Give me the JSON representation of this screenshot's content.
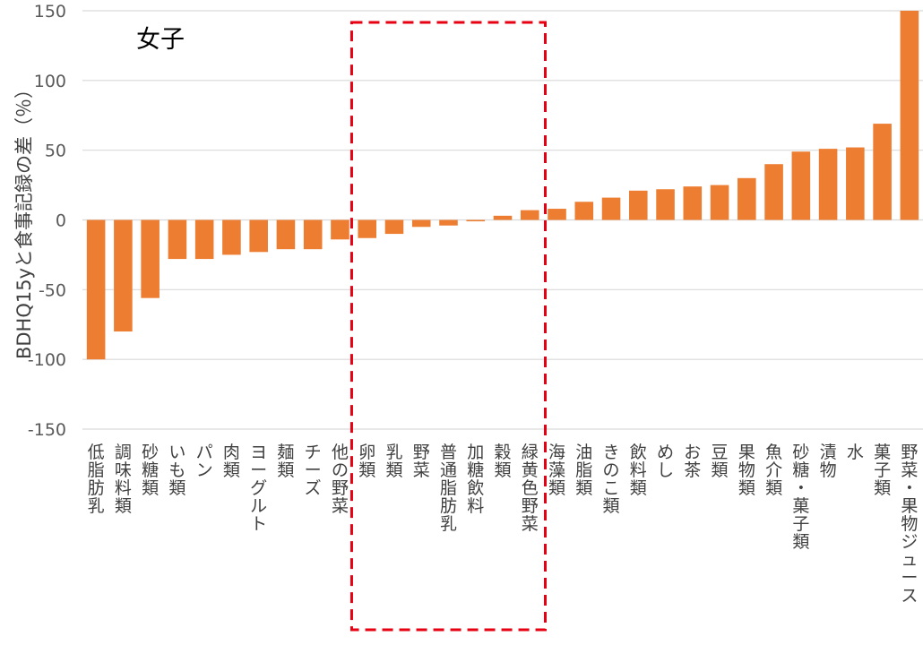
{
  "chart_data": {
    "type": "bar",
    "title": "女子",
    "xlabel": "",
    "ylabel": "BDHQ15yと食事記録の差（％）",
    "ylim": [
      -150,
      150
    ],
    "yticks": [
      150,
      100,
      50,
      0,
      -50,
      -100,
      -150
    ],
    "grid": true,
    "legend": "none",
    "categories": [
      "低脂肪乳",
      "調味料類",
      "砂糖類",
      "いも類",
      "パン",
      "肉類",
      "ヨーグルト",
      "麺類",
      "チーズ",
      "他の野菜",
      "卵類",
      "乳類",
      "野菜",
      "普通脂肪乳",
      "加糖飲料",
      "穀類",
      "緑黄色野菜",
      "海藻類",
      "油脂類",
      "きのこ類",
      "飲料類",
      "めし",
      "お茶",
      "豆類",
      "果物類",
      "魚介類",
      "砂糖・菓子類",
      "漬物",
      "水",
      "菓子類",
      "野菜・果物ジュース"
    ],
    "values": [
      -100,
      -80,
      -56,
      -28,
      -28,
      -25,
      -23,
      -21,
      -21,
      -14,
      -13,
      -10,
      -5,
      -4,
      -1,
      3,
      7,
      8,
      13,
      16,
      21,
      22,
      24,
      25,
      30,
      40,
      49,
      51,
      52,
      69,
      150
    ],
    "bar_color": "#ED7D31",
    "highlight": {
      "style": "dashed-rectangle",
      "color": "#E60012",
      "from_category": "卵類",
      "to_category": "緑黄色野菜"
    }
  }
}
